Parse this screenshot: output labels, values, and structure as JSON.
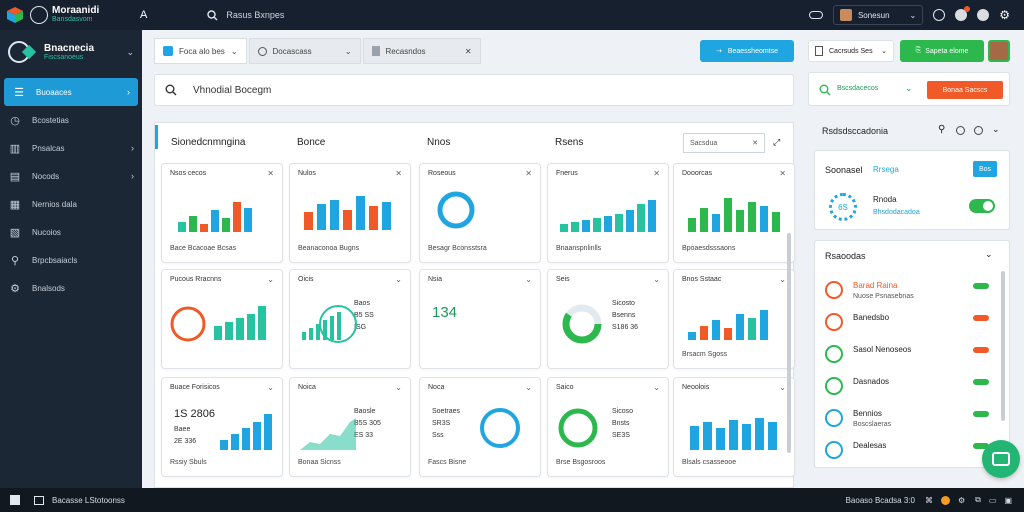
{
  "app": {
    "title": "Moraanidi",
    "subtitle": "Bansdasvom"
  },
  "topbar": {
    "search_text": "Rasus Bxnpes",
    "user_name": "Sonesun",
    "icons": [
      "cloud-icon",
      "user-avatar",
      "clock-icon",
      "bell-icon",
      "help-icon",
      "settings-icon"
    ]
  },
  "sidebar": {
    "title": "Bnacnecia",
    "subtitle": "Fiscsanoeus",
    "items": [
      {
        "label": "Buoaaces",
        "icon": "menu-icon",
        "active": true,
        "chevron": true
      },
      {
        "label": "Bcostetias",
        "icon": "clock-icon",
        "active": false,
        "chevron": false
      },
      {
        "label": "Pnsalcas",
        "icon": "chart-icon",
        "active": false,
        "chevron": true
      },
      {
        "label": "Nocods",
        "icon": "folder-icon",
        "active": false,
        "chevron": true
      },
      {
        "label": "Nernios dala",
        "icon": "document-icon",
        "active": false,
        "chevron": false
      },
      {
        "label": "Nucoios",
        "icon": "file-icon",
        "active": false,
        "chevron": false
      },
      {
        "label": "Brpcbsaiacls",
        "icon": "search-icon",
        "active": false,
        "chevron": false
      },
      {
        "label": "Bnalsods",
        "icon": "settings-icon",
        "active": false,
        "chevron": false
      }
    ]
  },
  "tabs": [
    {
      "label": "Foca alo bes",
      "icon": "dashboard-icon"
    },
    {
      "label": "Docascass",
      "icon": "search-icon"
    },
    {
      "label": "Recasndos",
      "icon": "file-icon"
    }
  ],
  "primary_button": {
    "label": "Beaessheomtse"
  },
  "main_search": {
    "value": "Vhnodial Bocegm"
  },
  "panel": {
    "header": "Sionedcnmngina",
    "col2": "Bonce",
    "col3": "Nnos",
    "col4": "Rsens",
    "search_label": "Sacsdua"
  },
  "cards": [
    {
      "title": "Nsos cecos",
      "footer": "Bace Bcacoae Bcsas",
      "kind": "bar-mixed"
    },
    {
      "title": "Nulos",
      "footer": "Beanaconoa Bugns",
      "kind": "bar-blue-orange"
    },
    {
      "title": "Roseous",
      "footer": "Besagr Bconsstsra",
      "kind": "ring"
    },
    {
      "title": "Fnerus",
      "footer": "Bnaanspnlinlls",
      "kind": "bar-teal"
    },
    {
      "title": "Dooorcas",
      "footer": "Bpoaesdsssaons",
      "kind": "bar-green"
    },
    {
      "title": "Pucous Rracnns",
      "footer": "",
      "kind": "clock-bars"
    },
    {
      "title": "Oicis",
      "footer": "",
      "kind": "globe",
      "mini": [
        "Baos",
        "B5 SS",
        "ISG"
      ]
    },
    {
      "title": "Nsia",
      "footer": "",
      "kind": "number",
      "value": "134"
    },
    {
      "title": "Seis",
      "footer": "",
      "kind": "donut",
      "mini": [
        "Sicosto",
        "Bsenns",
        "S186 36"
      ]
    },
    {
      "title": "Bnos Sstaac",
      "footer": "Brsacm Sgoss",
      "kind": "bar-mixed2"
    },
    {
      "title": "Buace Forisicos",
      "footer": "Rssiy Sbuls",
      "kind": "kpi",
      "value": "1S 2806",
      "mini": [
        "Baee",
        "2E 336"
      ]
    },
    {
      "title": "Noica",
      "footer": "Bonaa Sicnss",
      "kind": "area",
      "mini": [
        "Baosle",
        "B5S 305",
        "ES 33"
      ]
    },
    {
      "title": "Noca",
      "footer": "Fascs Bisne",
      "kind": "clock",
      "mini": [
        "Soetraes",
        "SR3S",
        "Sss"
      ]
    },
    {
      "title": "Saico",
      "footer": "Brse Bsgosroos",
      "kind": "green-ring",
      "mini": [
        "Sicoso",
        "Bnsts",
        "SE3S"
      ]
    },
    {
      "title": "Neoolois",
      "footer": "Blsals csasseooe",
      "kind": "bar-blue"
    }
  ],
  "right": {
    "green_button": "Sapeta elome",
    "select_label": "Cacrsuds Ses",
    "search_label": "Bscsdacecos",
    "orange_button": "Bonaa Sacscs",
    "section_title": "Rsdsdsccadonia",
    "card_title": "Soonasel",
    "card_link": "Rrsega",
    "card_btn": "Bos",
    "card_label": "Rnoda",
    "card_sub": "Bhsdodacadoa",
    "card_value": "6S",
    "list_title": "Rsaoodas",
    "list": [
      {
        "title": "Barad Raina",
        "sub": "Nuose Psnasebnas",
        "color": "#f05a28",
        "status": "#2db84d"
      },
      {
        "title": "Banedsbo",
        "sub": "",
        "color": "#f05a28",
        "status": "#f05a28"
      },
      {
        "title": "Sasol Nenoseos",
        "sub": "",
        "color": "#2db84d",
        "status": "#f05a28"
      },
      {
        "title": "Dasnados",
        "sub": "",
        "color": "#2db84d",
        "status": "#2db84d"
      },
      {
        "title": "Bennios",
        "sub": "Boscslaeras",
        "color": "#1fa5df",
        "status": "#2db84d"
      },
      {
        "title": "Dealesas",
        "sub": "",
        "color": "#1fa5df",
        "status": "#2db84d"
      }
    ]
  },
  "taskbar": {
    "label": "Bacasse LStotoonss",
    "right_text": "Baoaso Bcadsa 3:0"
  }
}
